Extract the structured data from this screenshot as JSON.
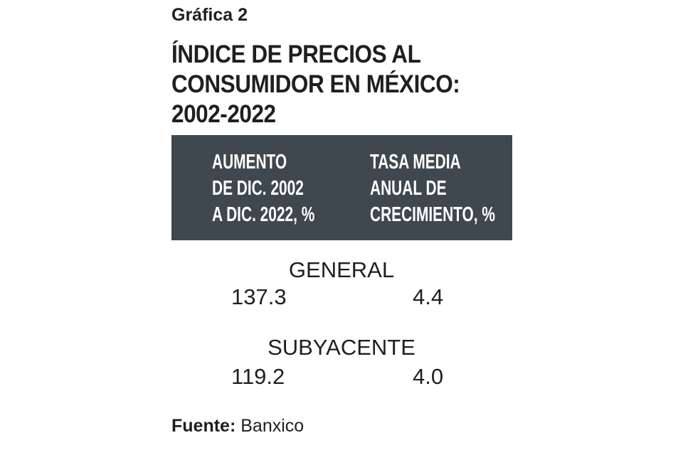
{
  "kicker": "Gráfica 2",
  "title": [
    "ÍNDICE DE PRECIOS AL",
    "CONSUMIDOR EN MÉXICO:",
    "2002-2022"
  ],
  "columns": [
    [
      "AUMENTO",
      "DE DIC. 2002",
      "A DIC. 2022, %"
    ],
    [
      "TASA MEDIA",
      "ANUAL DE",
      "CRECIMIENTO, %"
    ]
  ],
  "rows": [
    {
      "label": "GENERAL",
      "values": [
        "137.3",
        "4.4"
      ]
    },
    {
      "label": "SUBYACENTE",
      "values": [
        "119.2",
        "4.0"
      ]
    }
  ],
  "source": {
    "label": "Fuente:",
    "value": "Banxico"
  },
  "colors": {
    "header_bg": "#3e484e"
  }
}
